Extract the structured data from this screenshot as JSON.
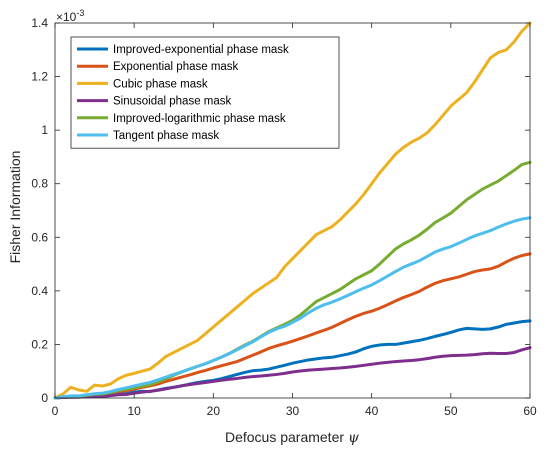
{
  "chart_data": {
    "type": "line",
    "title": "",
    "xlabel": "Defocus parameter",
    "xlabel_symbol": "ψ",
    "ylabel": "Fisher Information",
    "y_exponent_label": "×10",
    "y_exponent_power": "-3",
    "xlim": [
      0,
      60
    ],
    "ylim": [
      0,
      1.4
    ],
    "x_ticks": [
      "0",
      "10",
      "20",
      "30",
      "40",
      "50",
      "60"
    ],
    "y_ticks": [
      "0",
      "0.2",
      "0.4",
      "0.6",
      "0.8",
      "1",
      "1.2",
      "1.4"
    ],
    "grid": false,
    "legend_position": "top-left",
    "x": [
      0,
      1,
      2,
      3,
      4,
      5,
      6,
      7,
      8,
      9,
      10,
      11,
      12,
      13,
      14,
      15,
      16,
      17,
      18,
      19,
      20,
      21,
      22,
      23,
      24,
      25,
      26,
      27,
      28,
      29,
      30,
      31,
      32,
      33,
      34,
      35,
      36,
      37,
      38,
      39,
      40,
      41,
      42,
      43,
      44,
      45,
      46,
      47,
      48,
      49,
      50,
      51,
      52,
      53,
      54,
      55,
      56,
      57,
      58,
      59,
      60
    ],
    "series": [
      {
        "name": "Improved-exponential phase mask",
        "color": "#0072BD",
        "values": [
          0.0,
          0.003,
          0.005,
          0.004,
          0.008,
          0.01,
          0.009,
          0.014,
          0.017,
          0.016,
          0.022,
          0.025,
          0.024,
          0.03,
          0.036,
          0.04,
          0.045,
          0.052,
          0.058,
          0.062,
          0.066,
          0.072,
          0.08,
          0.088,
          0.096,
          0.102,
          0.104,
          0.108,
          0.115,
          0.122,
          0.13,
          0.136,
          0.142,
          0.146,
          0.15,
          0.152,
          0.158,
          0.164,
          0.172,
          0.184,
          0.193,
          0.198,
          0.2,
          0.2,
          0.205,
          0.21,
          0.215,
          0.222,
          0.23,
          0.237,
          0.245,
          0.254,
          0.26,
          0.258,
          0.256,
          0.258,
          0.265,
          0.275,
          0.28,
          0.285,
          0.288
        ]
      },
      {
        "name": "Exponential phase mask",
        "color": "#D95319",
        "values": [
          0.0,
          0.004,
          0.006,
          0.006,
          0.01,
          0.013,
          0.012,
          0.018,
          0.024,
          0.027,
          0.033,
          0.04,
          0.045,
          0.052,
          0.062,
          0.07,
          0.078,
          0.086,
          0.095,
          0.103,
          0.112,
          0.12,
          0.128,
          0.136,
          0.148,
          0.16,
          0.172,
          0.185,
          0.195,
          0.203,
          0.212,
          0.222,
          0.232,
          0.243,
          0.253,
          0.264,
          0.278,
          0.292,
          0.305,
          0.316,
          0.324,
          0.335,
          0.348,
          0.362,
          0.375,
          0.386,
          0.398,
          0.414,
          0.428,
          0.438,
          0.445,
          0.452,
          0.462,
          0.472,
          0.478,
          0.482,
          0.492,
          0.508,
          0.522,
          0.532,
          0.538
        ]
      },
      {
        "name": "Cubic phase mask",
        "color": "#EDB120",
        "values": [
          0.0,
          0.015,
          0.04,
          0.03,
          0.025,
          0.048,
          0.045,
          0.052,
          0.072,
          0.085,
          0.092,
          0.1,
          0.108,
          0.13,
          0.155,
          0.17,
          0.185,
          0.2,
          0.215,
          0.24,
          0.265,
          0.29,
          0.315,
          0.34,
          0.365,
          0.39,
          0.41,
          0.43,
          0.45,
          0.49,
          0.52,
          0.55,
          0.58,
          0.61,
          0.625,
          0.64,
          0.665,
          0.695,
          0.725,
          0.76,
          0.8,
          0.84,
          0.875,
          0.91,
          0.935,
          0.955,
          0.97,
          0.99,
          1.02,
          1.055,
          1.09,
          1.115,
          1.14,
          1.18,
          1.225,
          1.27,
          1.29,
          1.3,
          1.33,
          1.37,
          1.4
        ]
      },
      {
        "name": "Sinusoidal phase mask",
        "color": "#7E2F8E",
        "values": [
          0.0,
          0.002,
          0.003,
          0.003,
          0.005,
          0.006,
          0.006,
          0.009,
          0.012,
          0.013,
          0.018,
          0.022,
          0.025,
          0.029,
          0.034,
          0.04,
          0.046,
          0.05,
          0.054,
          0.058,
          0.062,
          0.066,
          0.07,
          0.073,
          0.077,
          0.08,
          0.082,
          0.085,
          0.088,
          0.092,
          0.097,
          0.101,
          0.104,
          0.106,
          0.108,
          0.11,
          0.112,
          0.115,
          0.118,
          0.122,
          0.126,
          0.13,
          0.133,
          0.136,
          0.138,
          0.14,
          0.143,
          0.147,
          0.152,
          0.156,
          0.158,
          0.159,
          0.16,
          0.162,
          0.165,
          0.167,
          0.166,
          0.166,
          0.17,
          0.18,
          0.188
        ]
      },
      {
        "name": "Improved-logarithmic phase mask",
        "color": "#77AC30",
        "values": [
          0.0,
          0.004,
          0.006,
          0.006,
          0.01,
          0.014,
          0.015,
          0.02,
          0.028,
          0.032,
          0.038,
          0.044,
          0.05,
          0.06,
          0.072,
          0.085,
          0.097,
          0.108,
          0.118,
          0.128,
          0.14,
          0.152,
          0.166,
          0.182,
          0.198,
          0.212,
          0.23,
          0.248,
          0.262,
          0.275,
          0.29,
          0.31,
          0.335,
          0.36,
          0.375,
          0.39,
          0.405,
          0.425,
          0.445,
          0.46,
          0.475,
          0.5,
          0.528,
          0.556,
          0.575,
          0.59,
          0.608,
          0.63,
          0.655,
          0.672,
          0.69,
          0.715,
          0.74,
          0.76,
          0.78,
          0.795,
          0.81,
          0.83,
          0.85,
          0.872,
          0.88
        ]
      },
      {
        "name": "Tangent phase mask",
        "color": "#4DBEEE",
        "values": [
          0.0,
          0.005,
          0.008,
          0.008,
          0.012,
          0.016,
          0.018,
          0.024,
          0.032,
          0.038,
          0.045,
          0.052,
          0.058,
          0.068,
          0.078,
          0.088,
          0.098,
          0.108,
          0.118,
          0.128,
          0.14,
          0.152,
          0.165,
          0.18,
          0.195,
          0.21,
          0.228,
          0.245,
          0.258,
          0.268,
          0.282,
          0.298,
          0.318,
          0.335,
          0.348,
          0.358,
          0.37,
          0.383,
          0.397,
          0.41,
          0.422,
          0.438,
          0.455,
          0.472,
          0.488,
          0.5,
          0.512,
          0.528,
          0.545,
          0.556,
          0.565,
          0.578,
          0.592,
          0.605,
          0.615,
          0.625,
          0.638,
          0.65,
          0.66,
          0.668,
          0.673
        ]
      }
    ]
  }
}
